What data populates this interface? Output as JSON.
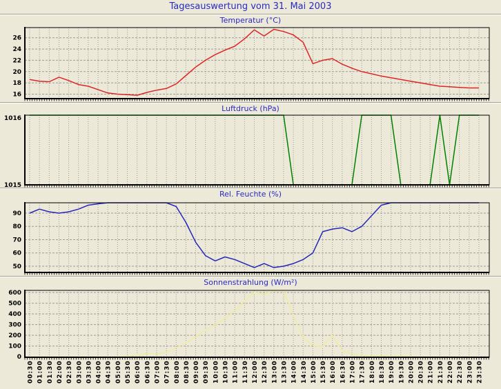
{
  "page": {
    "title": "Tagesauswertung vom 31. Mai 2003"
  },
  "colors": {
    "background": "#ece9d8",
    "heading_blue": "#2929c8",
    "grid_gray": "#9c9c94",
    "frame_black": "#000000",
    "temperature_line": "#dd2525",
    "pressure_line": "#008000",
    "humidity_line": "#2525bb",
    "radiation_line": "#ededa0"
  },
  "chart_data": {
    "type": "line",
    "layout_hint": "four stacked panels, shared x-axis, dashed grid on, no legend, x tick labels rotated vertical on bottom panel only",
    "x_categories": [
      "00:30",
      "01:00",
      "01:30",
      "02:00",
      "02:30",
      "03:00",
      "03:30",
      "04:00",
      "04:30",
      "05:00",
      "05:30",
      "06:00",
      "06:30",
      "07:00",
      "07:30",
      "08:00",
      "08:30",
      "09:00",
      "09:30",
      "10:00",
      "10:30",
      "11:00",
      "11:30",
      "12:00",
      "12:30",
      "13:00",
      "13:30",
      "14:00",
      "14:30",
      "15:00",
      "15:30",
      "16:00",
      "16:30",
      "17:00",
      "17:30",
      "18:00",
      "18:30",
      "19:00",
      "19:30",
      "20:00",
      "20:30",
      "21:00",
      "21:30",
      "22:00",
      "22:30",
      "23:00",
      "23:30"
    ],
    "panels": [
      {
        "title": "Temperatur (°C)",
        "type": "line",
        "color": "#dd2525",
        "yticks": [
          16,
          18,
          20,
          22,
          24,
          26
        ],
        "ylim": [
          15.2,
          27.8
        ],
        "values": [
          18.6,
          18.3,
          18.2,
          19.0,
          18.4,
          17.7,
          17.4,
          16.8,
          16.2,
          16.0,
          15.9,
          15.8,
          16.3,
          16.7,
          17.0,
          17.8,
          19.3,
          20.8,
          22.0,
          23.0,
          23.8,
          24.5,
          25.8,
          27.4,
          26.3,
          27.5,
          27.1,
          26.5,
          25.2,
          21.4,
          22.0,
          22.3,
          21.3,
          20.6,
          20.0,
          19.6,
          19.2,
          18.9,
          18.6,
          18.3,
          18.0,
          17.7,
          17.4,
          17.3,
          17.2,
          17.1,
          17.1
        ]
      },
      {
        "title": "Luftdruck (hPa)",
        "type": "line",
        "color": "#008000",
        "yticks": [
          1015,
          1016
        ],
        "ylim": [
          1015,
          1016
        ],
        "values": [
          1016,
          1016,
          1016,
          1016,
          1016,
          1016,
          1016,
          1016,
          1016,
          1016,
          1016,
          1016,
          1016,
          1016,
          1016,
          1016,
          1016,
          1016,
          1016,
          1016,
          1016,
          1016,
          1016,
          1016,
          1016,
          1016,
          1016,
          1015,
          1015,
          1015,
          1015,
          1015,
          1015,
          1015,
          1016,
          1016,
          1016,
          1016,
          1015,
          1015,
          1015,
          1015,
          1016,
          1015,
          1016,
          1016,
          1016
        ]
      },
      {
        "title": "Rel. Feuchte (%)",
        "type": "line",
        "color": "#2525bb",
        "yticks": [
          50,
          60,
          70,
          80,
          90
        ],
        "ylim": [
          45.3,
          97.8
        ],
        "values": [
          90,
          93,
          91,
          90,
          91,
          93,
          96,
          97,
          98,
          99,
          99,
          99,
          99,
          99,
          99,
          95,
          83,
          68,
          58,
          54,
          57,
          55,
          52,
          49,
          52,
          49,
          50,
          52,
          55,
          60,
          76,
          78,
          79,
          76,
          80,
          88,
          96,
          99,
          99,
          99,
          99,
          99,
          99,
          99,
          99,
          99,
          99
        ]
      },
      {
        "title": "Sonnenstrahlung (W/m²)",
        "type": "line",
        "color": "#ededa0",
        "yticks": [
          0,
          100,
          200,
          300,
          400,
          500,
          600
        ],
        "ylim": [
          -5,
          620
        ],
        "values": [
          0,
          0,
          0,
          0,
          0,
          0,
          0,
          0,
          0,
          0,
          5,
          15,
          30,
          25,
          40,
          85,
          130,
          185,
          250,
          300,
          360,
          430,
          520,
          600,
          585,
          615,
          620,
          380,
          180,
          105,
          95,
          200,
          55,
          25,
          12,
          10,
          10,
          8,
          8,
          5,
          0,
          0,
          0,
          0,
          0,
          0,
          0
        ]
      }
    ]
  }
}
